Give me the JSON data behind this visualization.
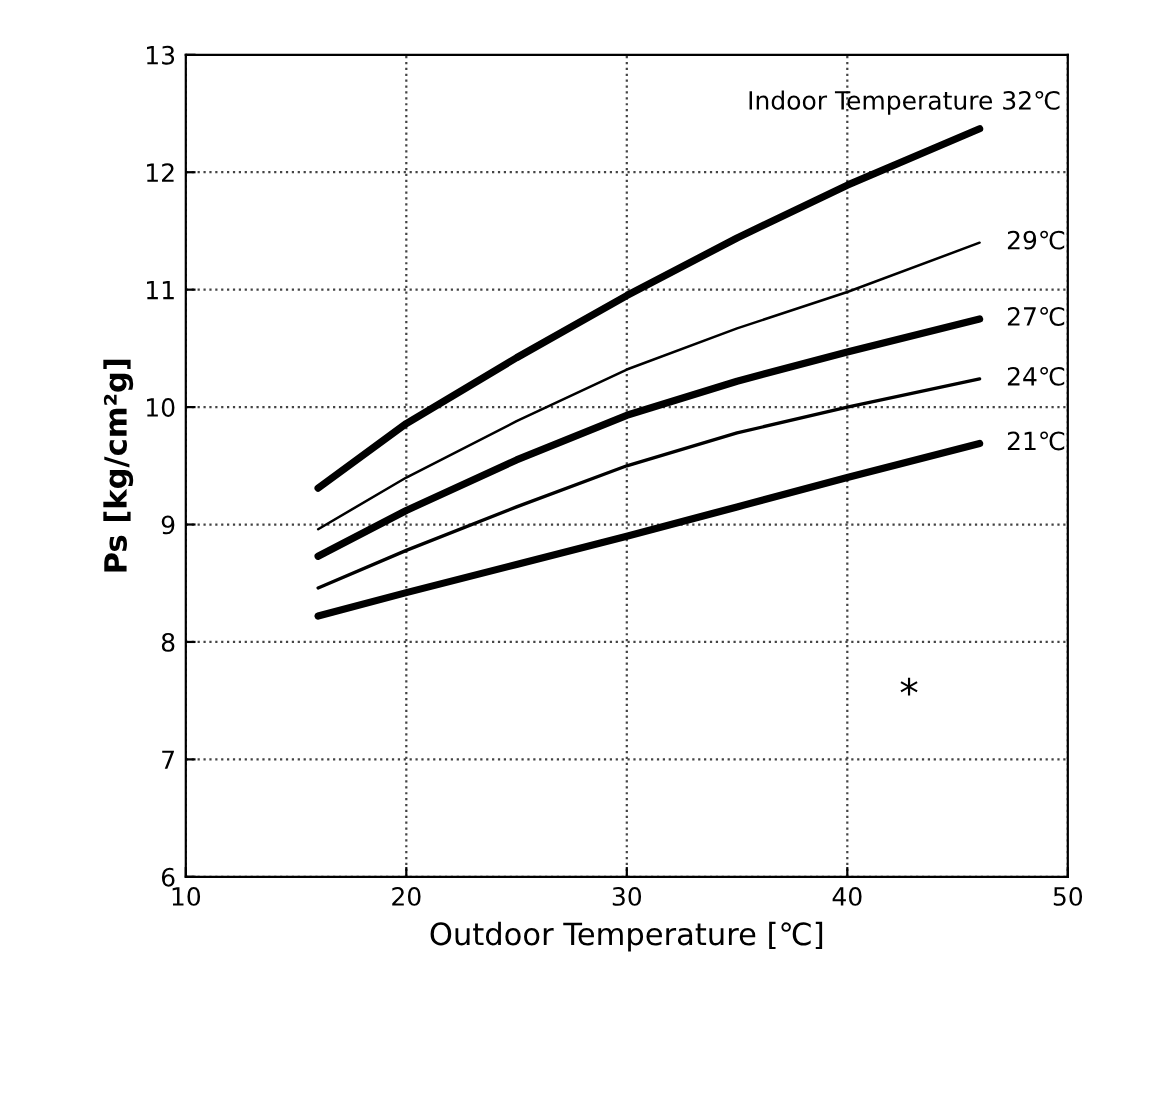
{
  "chart_data": {
    "type": "line",
    "xlabel": "Outdoor Temperature [℃]",
    "ylabel": "Ps [kg/cm²g]",
    "x": [
      16,
      20,
      25,
      30,
      35,
      40,
      46
    ],
    "series": [
      {
        "name": "Indoor Temperature 32℃",
        "color": "#000000",
        "values": [
          9.31,
          9.86,
          10.42,
          10.95,
          11.44,
          11.89,
          12.37
        ]
      },
      {
        "name": "29℃",
        "color": "#000000",
        "values": [
          8.96,
          9.4,
          9.88,
          10.32,
          10.67,
          10.98,
          11.4
        ]
      },
      {
        "name": "27℃",
        "color": "#000000",
        "values": [
          8.73,
          9.12,
          9.55,
          9.93,
          10.22,
          10.47,
          10.75
        ]
      },
      {
        "name": "24℃",
        "color": "#000000",
        "values": [
          8.46,
          8.78,
          9.15,
          9.5,
          9.78,
          10.0,
          10.24
        ]
      },
      {
        "name": "21℃",
        "color": "#000000",
        "values": [
          8.22,
          8.42,
          8.66,
          8.9,
          9.15,
          9.4,
          9.69
        ]
      }
    ],
    "annotations": [
      "*"
    ],
    "xlim": [
      10,
      50
    ],
    "xticks": [
      10,
      20,
      30,
      40,
      50
    ],
    "ylim": [
      6,
      13
    ],
    "yticks": [
      6,
      7,
      8,
      9,
      10,
      11,
      12,
      13
    ],
    "grid": true,
    "line_style": "solid",
    "marker": "none",
    "legend": false
  }
}
